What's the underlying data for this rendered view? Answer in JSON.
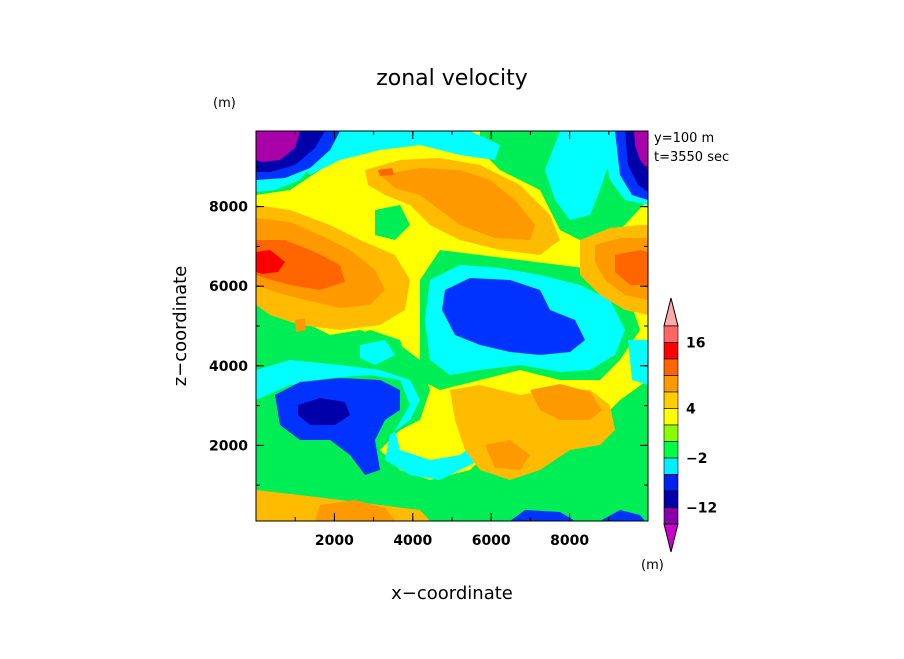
{
  "chart_data": {
    "type": "heatmap",
    "title": "zonal velocity",
    "xlabel": "x−coordinate",
    "ylabel": "z−coordinate",
    "x_unit": "(m)",
    "y_unit": "(m)",
    "annotation_line1": "y=100 m",
    "annotation_line2": "t=3550 sec",
    "xlim": [
      0,
      10000
    ],
    "ylim": [
      100,
      9900
    ],
    "x_ticks": [
      2000,
      4000,
      6000,
      8000
    ],
    "x_tick_labels": [
      "2000",
      "4000",
      "6000",
      "8000"
    ],
    "y_ticks": [
      2000,
      4000,
      6000,
      8000
    ],
    "y_tick_labels": [
      "2000",
      "4000",
      "6000",
      "8000"
    ],
    "colorbar": {
      "levels": [
        -18,
        -15,
        -12,
        -9,
        -6,
        -2,
        0,
        2,
        4,
        7,
        10,
        13,
        16,
        19
      ],
      "colors": [
        "#cc00cc",
        "#8800aa",
        "#0000aa",
        "#0022ee",
        "#00eeff",
        "#00ff44",
        "#88ff00",
        "#ffff00",
        "#ffcc00",
        "#ff9900",
        "#ff6600",
        "#ff0000",
        "#ff6666",
        "#ffaaaa"
      ],
      "labels": [
        "16",
        "4",
        "−2",
        "−12"
      ],
      "label_values": [
        16,
        4,
        -2,
        -12
      ],
      "unit": "(m)"
    },
    "field_description": "2D turbulent-like field: strong positive (red) near left edge at z~6500, negative blue blob centered x~6500 z~5000, darker blue near x~2500 z~3000, purple corners top-left and top-right.",
    "colors": {
      "purple": "#aa00aa",
      "dark_blue": "#0000aa",
      "blue": "#0033ff",
      "cyan": "#00ffff",
      "green": "#00ee55",
      "yellow": "#ffff00",
      "light_orange": "#ffbb00",
      "orange": "#ff9900",
      "dark_orange": "#ff6600",
      "red": "#ff0000"
    }
  }
}
